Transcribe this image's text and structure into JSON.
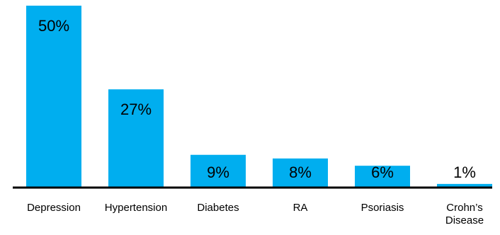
{
  "colors": {
    "bar": "#00aeef",
    "axis": "#000000",
    "text": "#000000",
    "background": "#ffffff"
  },
  "chart_data": {
    "type": "bar",
    "categories": [
      "Depression",
      "Hypertension",
      "Diabetes",
      "RA",
      "Psoriasis",
      "Crohn’s Disease"
    ],
    "category_lines": [
      [
        "Depression"
      ],
      [
        "Hypertension"
      ],
      [
        "Diabetes"
      ],
      [
        "RA"
      ],
      [
        "Psoriasis"
      ],
      [
        "Crohn’s",
        "Disease"
      ]
    ],
    "values": [
      50,
      27,
      9,
      8,
      6,
      1
    ],
    "value_labels": [
      "50%",
      "27%",
      "9%",
      "8%",
      "6%",
      "1%"
    ],
    "ylim": [
      0,
      50
    ],
    "grid": false,
    "legend": "none"
  }
}
